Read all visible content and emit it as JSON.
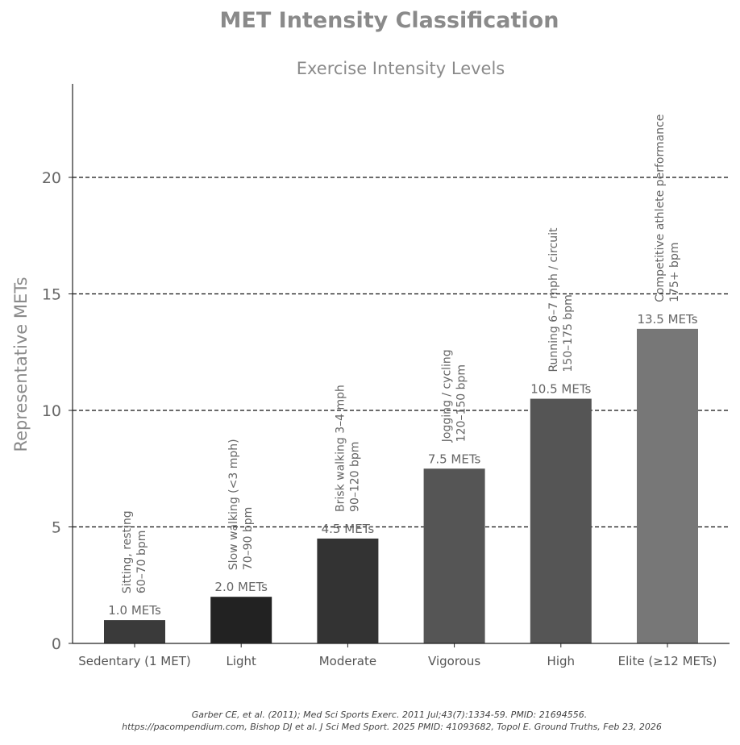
{
  "chart_data": {
    "type": "bar",
    "title": "MET Intensity Classification",
    "subtitle": "Exercise Intensity Levels",
    "xlabel": "",
    "ylabel": "Representative METs",
    "ylim": [
      0,
      24
    ],
    "yticks": [
      0,
      5,
      10,
      15,
      20
    ],
    "grid": "horizontal dashed at 5, 10, 15, 20",
    "categories": [
      "Sedentary (1 MET)",
      "Light",
      "Moderate",
      "Vigorous",
      "High",
      "Elite (≥12 METs)"
    ],
    "values": [
      1.0,
      2.0,
      4.5,
      7.5,
      10.5,
      13.5
    ],
    "value_labels": [
      "1.0 METs",
      "2.0 METs",
      "4.5 METs",
      "7.5 METs",
      "10.5 METs",
      "13.5 METs"
    ],
    "descriptions": [
      [
        "Sitting, resting",
        "60–70 bpm"
      ],
      [
        "Slow walking (<3 mph)",
        "70–90 bpm"
      ],
      [
        "Brisk walking 3–4 mph",
        "90–120 bpm"
      ],
      [
        "Jogging / cycling",
        "120–150 bpm"
      ],
      [
        "Running 6–7 mph / circuit",
        "150–175 bpm"
      ],
      [
        "Competitive athlete performance",
        "175+ bpm"
      ]
    ],
    "colors": [
      "#3a3a3a",
      "#222222",
      "#333333",
      "#555555",
      "#555555",
      "#777777"
    ]
  },
  "footer": {
    "line1": "Garber CE, et al. (2011);  Med Sci Sports Exerc. 2011 Jul;43(7):1334-59. PMID: 21694556.",
    "line2": "https://pacompendium.com, Bishop DJ et al. J Sci Med Sport. 2025 PMID: 41093682, Topol E. Ground Truths, Feb 23, 2026"
  }
}
